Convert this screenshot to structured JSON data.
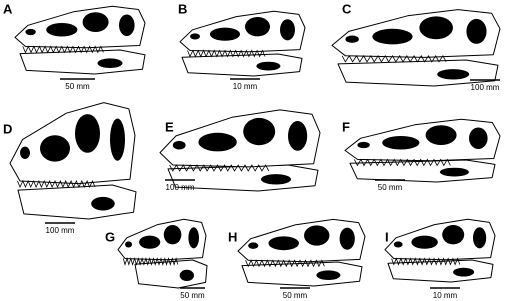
{
  "panels": [
    {
      "letter": "A",
      "scale": "50 mm"
    },
    {
      "letter": "B",
      "scale": "10 mm"
    },
    {
      "letter": "C",
      "scale": "100 mm"
    },
    {
      "letter": "D",
      "scale": "100 mm"
    },
    {
      "letter": "E",
      "scale": "100 mm"
    },
    {
      "letter": "F",
      "scale": "50 mm"
    },
    {
      "letter": "G",
      "scale": "50 mm"
    },
    {
      "letter": "H",
      "scale": "50 mm"
    },
    {
      "letter": "I",
      "scale": "10 mm"
    }
  ]
}
